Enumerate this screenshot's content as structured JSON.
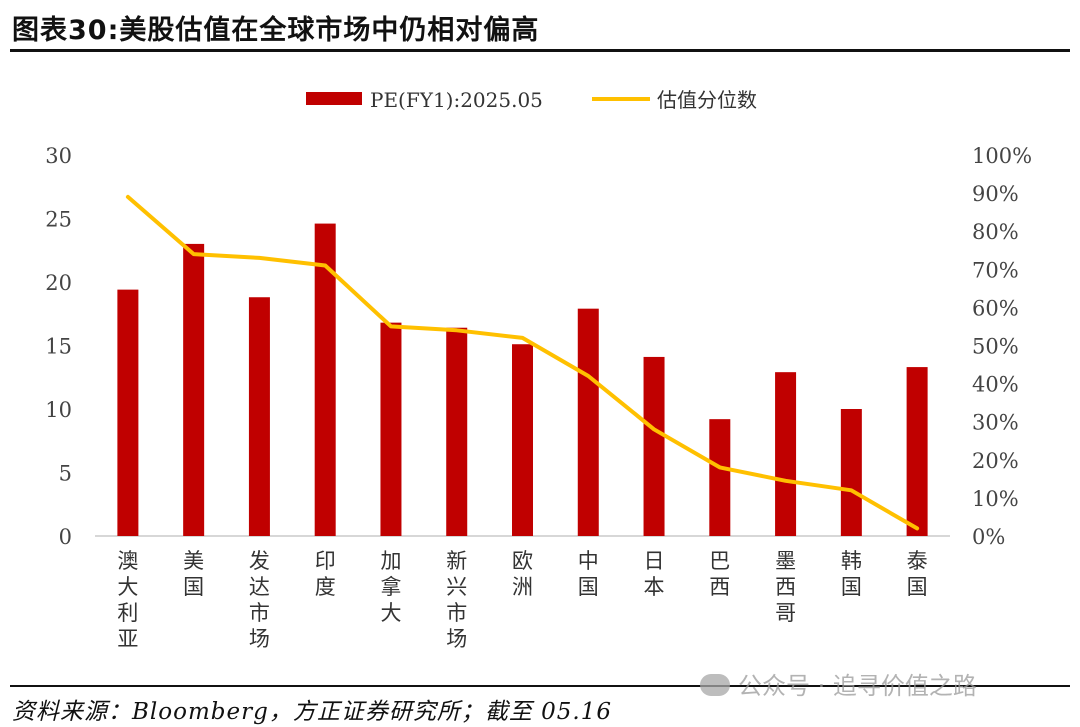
{
  "figure": {
    "title": "图表30:美股估值在全球市场中仍相对偏高",
    "source": "资料来源：Bloomberg，方正证券研究所；截至 05.16",
    "watermark": "公众号 · 追寻价值之路"
  },
  "chart_data": {
    "type": "bar",
    "categories": [
      "澳大利亚",
      "美国",
      "发达市场",
      "印度",
      "加拿大",
      "新兴市场",
      "欧洲",
      "中国",
      "日本",
      "巴西",
      "墨西哥",
      "韩国",
      "泰国"
    ],
    "series": [
      {
        "name": "PE(FY1):2025.05",
        "type": "bar",
        "axis": "left",
        "color": "#C00000",
        "values": [
          19.4,
          23.0,
          18.8,
          24.6,
          16.8,
          16.4,
          15.1,
          17.9,
          14.1,
          9.2,
          12.9,
          10.0,
          13.3
        ]
      },
      {
        "name": "估值分位数",
        "type": "line",
        "axis": "right",
        "color": "#FFC000",
        "values": [
          0.89,
          0.74,
          0.73,
          0.71,
          0.55,
          0.54,
          0.52,
          0.42,
          0.28,
          0.18,
          0.145,
          0.12,
          0.02
        ]
      }
    ],
    "y_left": {
      "min": 0,
      "max": 30,
      "ticks": [
        0,
        5,
        10,
        15,
        20,
        25,
        30
      ],
      "tick_labels": [
        "0",
        "5",
        "10",
        "15",
        "20",
        "25",
        "30"
      ]
    },
    "y_right": {
      "min": 0,
      "max": 1,
      "ticks": [
        0,
        0.1,
        0.2,
        0.3,
        0.4,
        0.5,
        0.6,
        0.7,
        0.8,
        0.9,
        1.0
      ],
      "tick_labels": [
        "0%",
        "10%",
        "20%",
        "30%",
        "40%",
        "50%",
        "60%",
        "70%",
        "80%",
        "90%",
        "100%"
      ]
    },
    "legend_position": "top-center",
    "grid": false
  }
}
